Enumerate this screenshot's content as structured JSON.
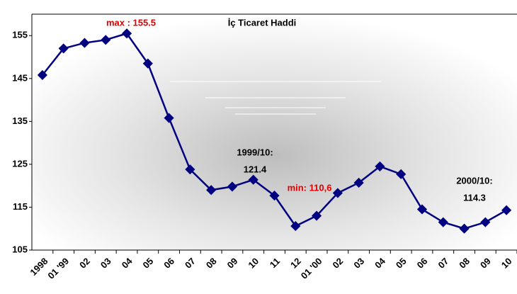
{
  "chart_data": {
    "type": "line",
    "title": "İç Ticaret Haddi",
    "categories": [
      "1998",
      "01 '99",
      "02",
      "03",
      "04",
      "05",
      "06",
      "07",
      "08",
      "09",
      "10",
      "11",
      "12",
      "01 '00",
      "02",
      "03",
      "04",
      "05",
      "06",
      "07",
      "08",
      "09",
      "10"
    ],
    "series": [
      {
        "name": "İç Ticaret Haddi",
        "color": "#000080",
        "values": [
          145.8,
          152.0,
          153.3,
          154.0,
          155.5,
          148.5,
          135.8,
          123.8,
          119.0,
          119.8,
          121.4,
          117.7,
          110.6,
          113.0,
          118.3,
          120.7,
          124.5,
          122.7,
          114.5,
          111.5,
          110.0,
          111.5,
          114.3
        ]
      }
    ],
    "ylim": [
      105,
      160
    ],
    "yticks": [
      105,
      115,
      125,
      135,
      145,
      155
    ],
    "annotations": [
      {
        "text": "max : 155.5",
        "color": "#e00000"
      },
      {
        "text": "1999/10:",
        "color": "#000000"
      },
      {
        "text": "121.4",
        "color": "#000000"
      },
      {
        "text": "min: 110,6",
        "color": "#e00000"
      },
      {
        "text": "2000/10:",
        "color": "#000000"
      },
      {
        "text": "114.3",
        "color": "#000000"
      }
    ]
  }
}
